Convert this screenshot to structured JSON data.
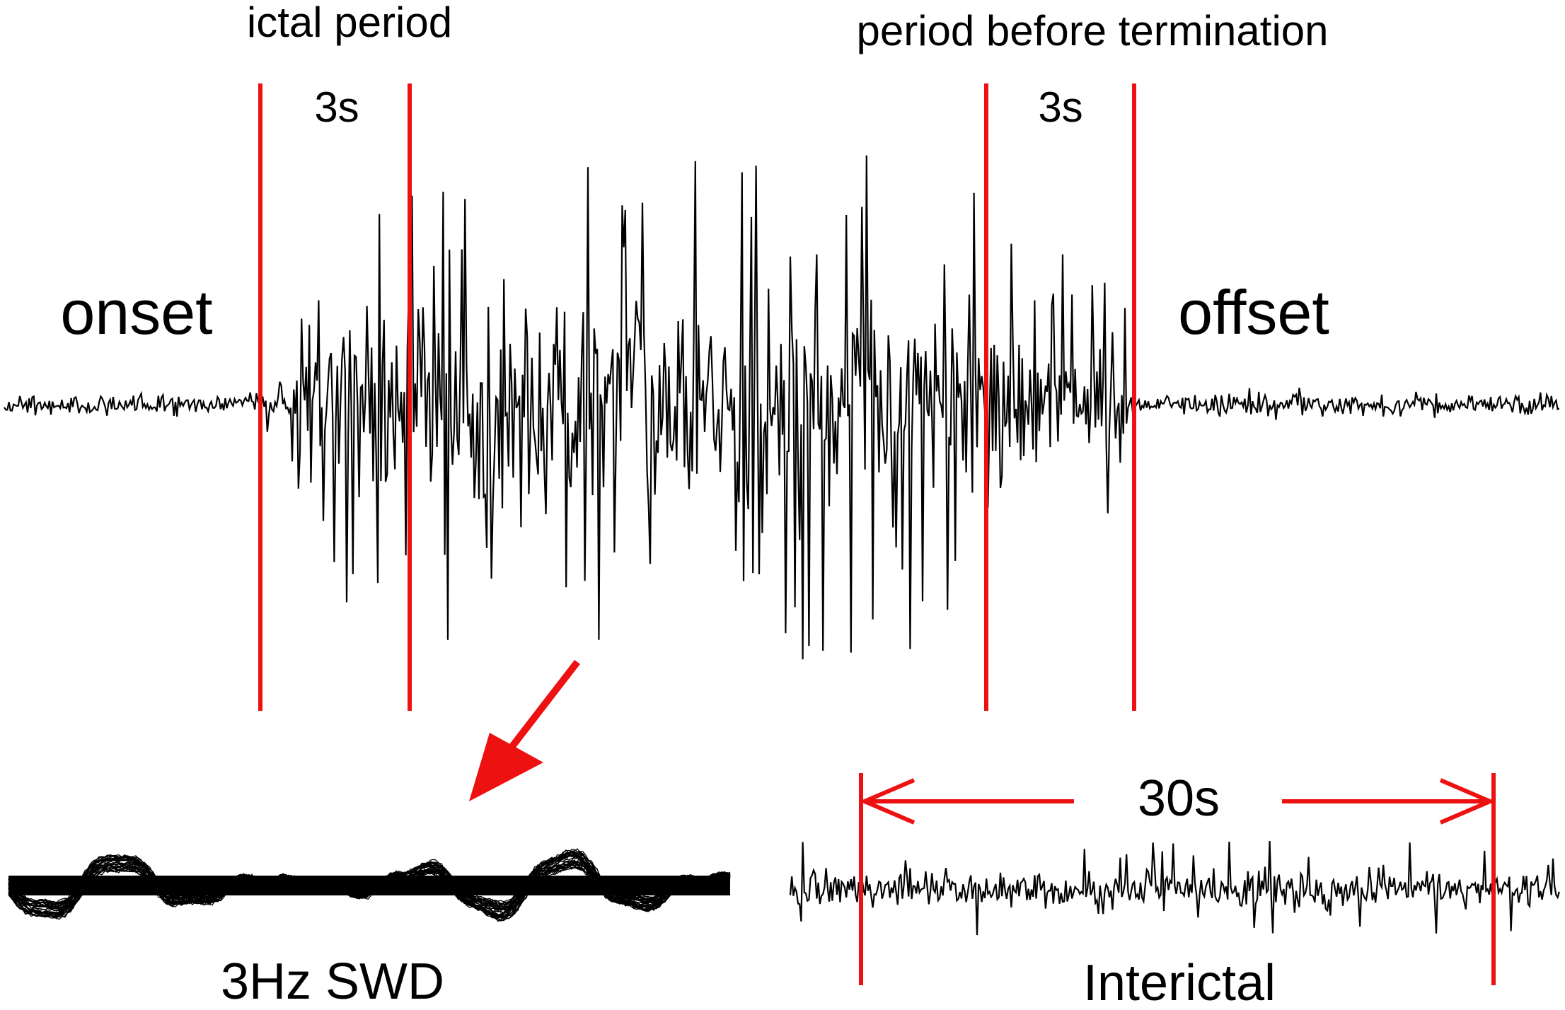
{
  "labels": {
    "ictal_period": "ictal period",
    "period_before_termination": "period before termination",
    "duration_left": "3s",
    "duration_right": "3s",
    "onset": "onset",
    "offset": "offset",
    "interictal_duration": "30s",
    "swd": "3Hz SWD",
    "interictal": "Interictal"
  },
  "colors": {
    "trace": "#000000",
    "marker": "#ee1111",
    "background": "#ffffff"
  },
  "icons": {
    "zoom_arrow": "arrow-down-left-icon",
    "span_arrows": "double-headed-arrow-icon"
  }
}
